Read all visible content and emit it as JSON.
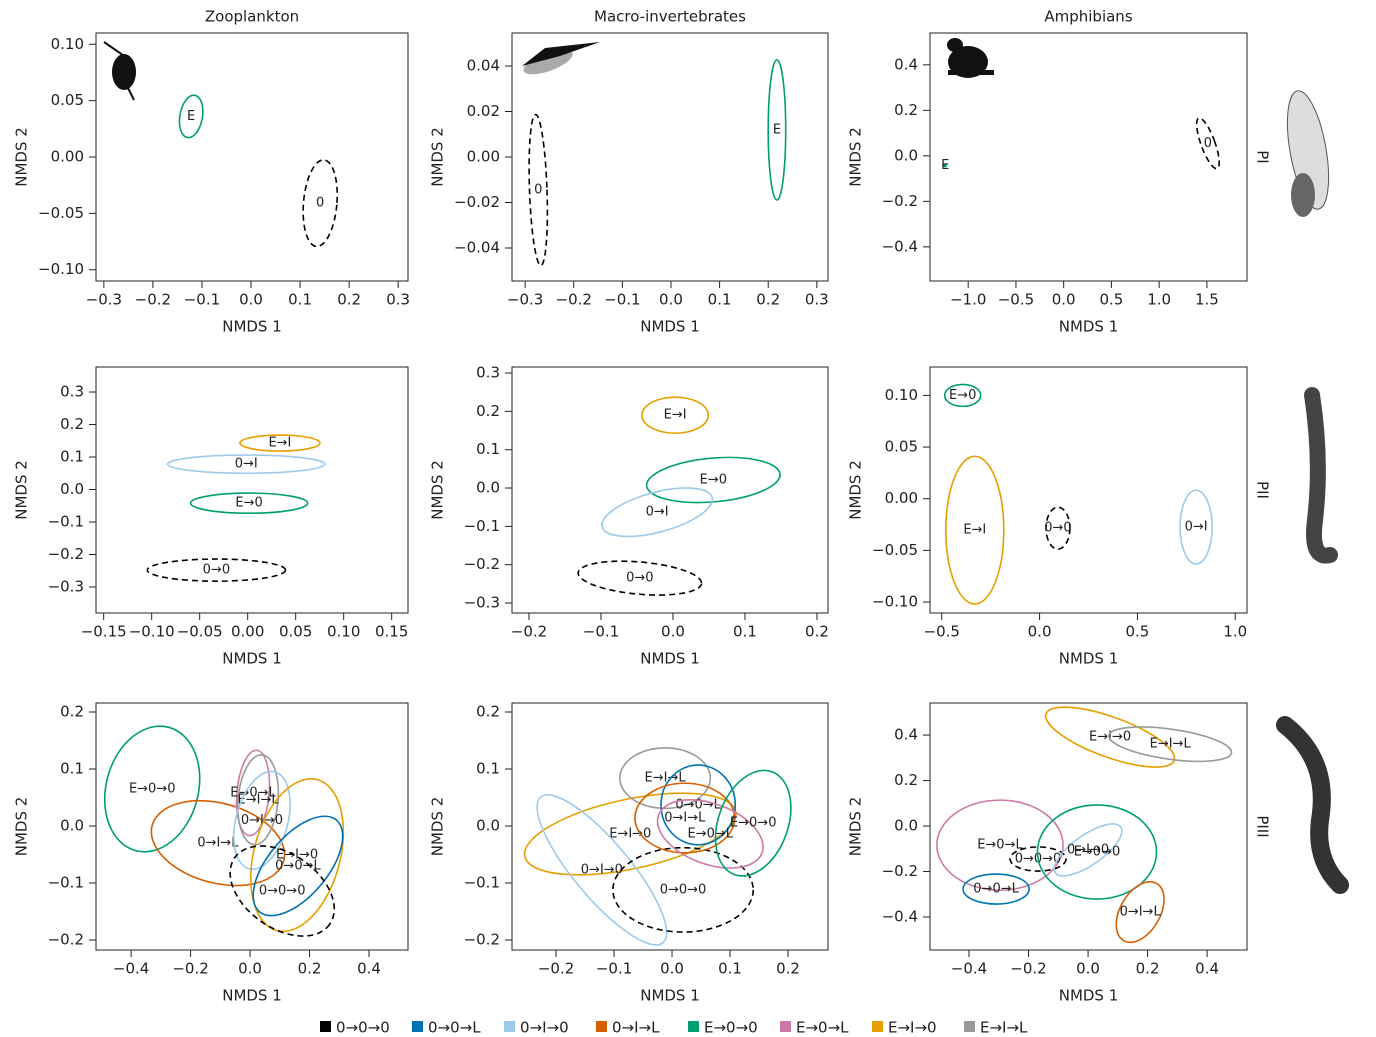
{
  "row_labels": [
    "PI",
    "PII",
    "PIII"
  ],
  "legend": [
    {
      "name": "0→0→0",
      "color": "#000000"
    },
    {
      "name": "0→0→L",
      "color": "#0072b2"
    },
    {
      "name": "0→I→0",
      "color": "#9ccae8"
    },
    {
      "name": "0→I→L",
      "color": "#d55e00"
    },
    {
      "name": "E→0→0",
      "color": "#009e73"
    },
    {
      "name": "E→0→L",
      "color": "#cc79a7"
    },
    {
      "name": "E→I→0",
      "color": "#e69f00"
    },
    {
      "name": "E→I→L",
      "color": "#999999"
    }
  ],
  "chart_data": [
    {
      "type": "ellipse",
      "title": "Zooplankton",
      "xlabel": "NMDS 1",
      "ylabel": "NMDS 2",
      "xlim": [
        -0.316,
        0.32
      ],
      "ylim": [
        -0.11,
        0.11
      ],
      "xticks": [
        {
          "value": -0.3,
          "label": "−0.3"
        },
        {
          "value": -0.2,
          "label": "−0.2"
        },
        {
          "value": -0.1,
          "label": "−0.1"
        },
        {
          "value": 0,
          "label": "0.0"
        },
        0.1,
        0.2,
        0.3
      ],
      "yticks": [
        {
          "value": -0.1,
          "label": "−0.10"
        },
        {
          "value": -0.05,
          "label": "−0.05"
        },
        {
          "value": 0,
          "label": "0.00"
        },
        0.05,
        {
          "value": 0.1,
          "label": "0.10"
        }
      ],
      "series": [
        {
          "name": "E",
          "color": "#009e73",
          "cx": -0.122,
          "cy": 0.036,
          "rx": 0.023,
          "ry": 0.019,
          "angle": 10
        },
        {
          "name": "0",
          "color": "#000000",
          "dashed": true,
          "cx": 0.141,
          "cy": -0.041,
          "rx": 0.034,
          "ry": 0.0385,
          "angle": 5
        }
      ]
    },
    {
      "type": "ellipse",
      "title": "Macro-invertebrates",
      "xlabel": "NMDS 1",
      "ylabel": "NMDS 2",
      "xlim": [
        -0.327,
        0.323
      ],
      "ylim": [
        -0.0545,
        0.0545
      ],
      "xticks": [
        {
          "value": -0.3,
          "label": "−0.3"
        },
        {
          "value": -0.2,
          "label": "−0.2"
        },
        {
          "value": -0.1,
          "label": "−0.1"
        },
        {
          "value": 0,
          "label": "0.0"
        },
        0.1,
        0.2,
        0.3
      ],
      "yticks": [
        {
          "value": -0.04,
          "label": "−0.04"
        },
        {
          "value": -0.02,
          "label": "−0.02"
        },
        {
          "value": 0,
          "label": "0.00"
        },
        0.02,
        0.04
      ],
      "series": [
        {
          "name": "0",
          "color": "#000000",
          "dashed": true,
          "cx": -0.273,
          "cy": -0.0145,
          "rx": 0.018,
          "ry": 0.0332,
          "angle": -2
        },
        {
          "name": "E",
          "color": "#009e73",
          "cx": 0.218,
          "cy": 0.0119,
          "rx": 0.018,
          "ry": 0.0308,
          "angle": 0
        }
      ]
    },
    {
      "type": "ellipse",
      "title": "Amphibians",
      "xlabel": "NMDS 1",
      "ylabel": "NMDS 2",
      "xlim": [
        -1.4,
        1.92
      ],
      "ylim": [
        -0.55,
        0.54
      ],
      "xticks": [
        {
          "value": -1,
          "label": "−1.0"
        },
        {
          "value": -0.5,
          "label": "−0.5"
        },
        {
          "value": 0,
          "label": "0.0"
        },
        0.5,
        {
          "value": 1,
          "label": "1.0"
        },
        1.5
      ],
      "yticks": [
        {
          "value": -0.4,
          "label": "−0.4"
        },
        {
          "value": -0.2,
          "label": "−0.2"
        },
        {
          "value": 0,
          "label": "0.0"
        },
        0.2,
        0.4
      ],
      "series": [
        {
          "name": "E",
          "color": "#009e73",
          "cx": -1.241,
          "cy": -0.042,
          "rx": 0.01,
          "ry": 0.005,
          "angle": 0
        },
        {
          "name": "0",
          "color": "#000000",
          "dashed": true,
          "cx": 1.511,
          "cy": 0.055,
          "rx": 0.073,
          "ry": 0.118,
          "angle": -20
        }
      ]
    },
    {
      "type": "ellipse",
      "xlabel": "NMDS 1",
      "ylabel": "NMDS 2",
      "xlim": [
        -0.158,
        0.167
      ],
      "ylim": [
        -0.38,
        0.377
      ],
      "xticks": [
        {
          "value": -0.15,
          "label": "−0.15"
        },
        {
          "value": -0.1,
          "label": "−0.10"
        },
        {
          "value": -0.05,
          "label": "−0.05"
        },
        {
          "value": 0,
          "label": "0.00"
        },
        0.05,
        {
          "value": 0.1,
          "label": "0.10"
        },
        0.15
      ],
      "yticks": [
        {
          "value": -0.3,
          "label": "−0.3"
        },
        {
          "value": -0.2,
          "label": "−0.2"
        },
        {
          "value": -0.1,
          "label": "−0.1"
        },
        {
          "value": 0,
          "label": "0.0"
        },
        0.1,
        0.2,
        0.3
      ],
      "series": [
        {
          "name": "E→I",
          "color": "#e69f00",
          "cx": 0.0336,
          "cy": 0.143,
          "rx": 0.0417,
          "ry": 0.0246,
          "angle": 0
        },
        {
          "name": "0→I",
          "color": "#9ccae8",
          "cx": -0.0015,
          "cy": 0.078,
          "rx": 0.082,
          "ry": 0.028,
          "angle": 0
        },
        {
          "name": "E→0",
          "color": "#009e73",
          "cx": 0.0015,
          "cy": -0.042,
          "rx": 0.061,
          "ry": 0.031,
          "angle": 0
        },
        {
          "name": "0→0",
          "color": "#000000",
          "dashed": true,
          "cx": -0.0326,
          "cy": -0.248,
          "rx": 0.072,
          "ry": 0.034,
          "angle": 0
        }
      ]
    },
    {
      "type": "ellipse",
      "xlabel": "NMDS 1",
      "ylabel": "NMDS 2",
      "xlim": [
        -0.2236,
        0.2153
      ],
      "ylim": [
        -0.326,
        0.3157
      ],
      "xticks": [
        {
          "value": -0.2,
          "label": "−0.2"
        },
        {
          "value": -0.1,
          "label": "−0.1"
        },
        {
          "value": 0,
          "label": "0.0"
        },
        0.1,
        0.2
      ],
      "yticks": [
        {
          "value": -0.3,
          "label": "−0.3"
        },
        {
          "value": -0.2,
          "label": "−0.2"
        },
        {
          "value": -0.1,
          "label": "−0.1"
        },
        {
          "value": 0,
          "label": "0.0"
        },
        0.1,
        0.2,
        0.3
      ],
      "series": [
        {
          "name": "E→I",
          "color": "#e69f00",
          "cx": 0.003,
          "cy": 0.19,
          "rx": 0.046,
          "ry": 0.047,
          "angle": 0
        },
        {
          "name": "E→0",
          "color": "#009e73",
          "cx": 0.056,
          "cy": 0.021,
          "rx": 0.093,
          "ry": 0.057,
          "angle": -5
        },
        {
          "name": "0→I",
          "color": "#9ccae8",
          "cx": -0.022,
          "cy": -0.063,
          "rx": 0.079,
          "ry": 0.052,
          "angle": -15
        },
        {
          "name": "0→0",
          "color": "#000000",
          "dashed": true,
          "cx": -0.046,
          "cy": -0.235,
          "rx": 0.086,
          "ry": 0.042,
          "angle": 5
        }
      ]
    },
    {
      "type": "ellipse",
      "xlabel": "NMDS 1",
      "ylabel": "NMDS 2",
      "xlim": [
        -0.56,
        1.06
      ],
      "ylim": [
        -0.1106,
        0.1275
      ],
      "xticks": [
        {
          "value": -0.5,
          "label": "−0.5"
        },
        {
          "value": 0,
          "label": "0.0"
        },
        0.5,
        {
          "value": 1,
          "label": "1.0"
        }
      ],
      "yticks": [
        {
          "value": -0.1,
          "label": "−0.10"
        },
        {
          "value": -0.05,
          "label": "−0.05"
        },
        {
          "value": 0,
          "label": "0.00"
        },
        0.05,
        {
          "value": 0.1,
          "label": "0.10"
        }
      ],
      "series": [
        {
          "name": "E→0",
          "color": "#009e73",
          "cx": -0.393,
          "cy": 0.1,
          "rx": 0.092,
          "ry": 0.0106,
          "angle": 0
        },
        {
          "name": "E→I",
          "color": "#e69f00",
          "cx": -0.331,
          "cy": -0.0304,
          "rx": 0.148,
          "ry": 0.0715,
          "angle": 0
        },
        {
          "name": "0→0",
          "color": "#000000",
          "dashed": true,
          "cx": 0.094,
          "cy": -0.0285,
          "rx": 0.061,
          "ry": 0.0203,
          "angle": 0
        },
        {
          "name": "0→I",
          "color": "#9ccae8",
          "cx": 0.8,
          "cy": -0.0275,
          "rx": 0.082,
          "ry": 0.0357,
          "angle": 0
        }
      ]
    },
    {
      "type": "ellipse",
      "xlabel": "NMDS 1",
      "ylabel": "NMDS 2",
      "xlim": [
        -0.518,
        0.531
      ],
      "ylim": [
        -0.2175,
        0.2158
      ],
      "xticks": [
        {
          "value": -0.4,
          "label": "−0.4"
        },
        {
          "value": -0.2,
          "label": "−0.2"
        },
        {
          "value": 0,
          "label": "0.0"
        },
        0.2,
        0.4
      ],
      "yticks": [
        {
          "value": -0.2,
          "label": "−0.2"
        },
        {
          "value": -0.1,
          "label": "−0.1"
        },
        {
          "value": 0,
          "label": "0.0"
        },
        0.1,
        0.2
      ],
      "series": [
        {
          "name": "E→0→0",
          "color": "#009e73",
          "cx": -0.329,
          "cy": 0.065,
          "rx": 0.155,
          "ry": 0.112,
          "angle": 15
        },
        {
          "name": "0→I→L",
          "color": "#d55e00",
          "cx": -0.108,
          "cy": -0.03,
          "rx": 0.229,
          "ry": 0.07,
          "angle": 15
        },
        {
          "name": "E→0→L",
          "color": "#cc79a7",
          "cx": 0.01,
          "cy": 0.058,
          "rx": 0.054,
          "ry": 0.075,
          "angle": 5
        },
        {
          "name": "E→I→L",
          "color": "#999999",
          "cx": 0.027,
          "cy": 0.046,
          "rx": 0.067,
          "ry": 0.079,
          "angle": 5
        },
        {
          "name": "0→I→0",
          "color": "#9ccae8",
          "cx": 0.04,
          "cy": 0.01,
          "rx": 0.087,
          "ry": 0.088,
          "angle": 15
        },
        {
          "name": "E→I→0",
          "color": "#e69f00",
          "cx": 0.158,
          "cy": -0.051,
          "rx": 0.145,
          "ry": 0.137,
          "angle": 15
        },
        {
          "name": "0→0→L",
          "color": "#0072b2",
          "cx": 0.161,
          "cy": -0.07,
          "rx": 0.1,
          "ry": 0.105,
          "angle": 40
        },
        {
          "name": "0→0→0",
          "color": "#000000",
          "dashed": true,
          "cx": 0.108,
          "cy": -0.114,
          "rx": 0.195,
          "ry": 0.065,
          "angle": 35
        }
      ]
    },
    {
      "type": "ellipse",
      "xlabel": "NMDS 1",
      "ylabel": "NMDS 2",
      "xlim": [
        -0.276,
        0.269
      ],
      "ylim": [
        -0.2175,
        0.2158
      ],
      "xticks": [
        {
          "value": -0.2,
          "label": "−0.2"
        },
        {
          "value": -0.1,
          "label": "−0.1"
        },
        {
          "value": 0,
          "label": "0.0"
        },
        0.1,
        0.2
      ],
      "yticks": [
        {
          "value": -0.2,
          "label": "−0.2"
        },
        {
          "value": -0.1,
          "label": "−0.1"
        },
        {
          "value": 0,
          "label": "0.0"
        },
        0.1,
        0.2
      ],
      "series": [
        {
          "name": "E→I→0",
          "color": "#e69f00",
          "cx": -0.072,
          "cy": -0.014,
          "rx": 0.186,
          "ry": 0.061,
          "angle": -12
        },
        {
          "name": "0→I→0",
          "color": "#9ccae8",
          "cx": -0.121,
          "cy": -0.077,
          "rx": 0.164,
          "ry": 0.049,
          "angle": 50
        },
        {
          "name": "0→0→0",
          "color": "#000000",
          "dashed": true,
          "cx": 0.019,
          "cy": -0.112,
          "rx": 0.121,
          "ry": 0.074,
          "angle": 0
        },
        {
          "name": "E→I→L",
          "color": "#999999",
          "cx": -0.012,
          "cy": 0.084,
          "rx": 0.078,
          "ry": 0.053,
          "angle": 0
        },
        {
          "name": "0→0→L",
          "color": "#0072b2",
          "cx": 0.045,
          "cy": 0.037,
          "rx": 0.064,
          "ry": 0.07,
          "angle": 0
        },
        {
          "name": "0→I→L",
          "color": "#d55e00",
          "cx": 0.022,
          "cy": 0.014,
          "rx": 0.086,
          "ry": 0.061,
          "angle": 0
        },
        {
          "name": "E→0→L",
          "color": "#cc79a7",
          "cx": 0.066,
          "cy": -0.014,
          "rx": 0.095,
          "ry": 0.053,
          "angle": 20
        },
        {
          "name": "E→0→0",
          "color": "#009e73",
          "cx": 0.14,
          "cy": 0.005,
          "rx": 0.06,
          "ry": 0.096,
          "angle": 20
        }
      ]
    },
    {
      "type": "ellipse",
      "xlabel": "NMDS 1",
      "ylabel": "NMDS 2",
      "xlim": [
        -0.531,
        0.534
      ],
      "ylim": [
        -0.545,
        0.541
      ],
      "xticks": [
        {
          "value": -0.4,
          "label": "−0.4"
        },
        {
          "value": -0.2,
          "label": "−0.2"
        },
        {
          "value": 0,
          "label": "0.0"
        },
        0.2,
        0.4
      ],
      "yticks": [
        {
          "value": -0.4,
          "label": "−0.4"
        },
        {
          "value": -0.2,
          "label": "−0.2"
        },
        {
          "value": 0,
          "label": "0.0"
        },
        0.2,
        0.4
      ],
      "series": [
        {
          "name": "E→I→0",
          "color": "#e69f00",
          "cx": 0.074,
          "cy": 0.391,
          "rx": 0.229,
          "ry": 0.088,
          "angle": 20
        },
        {
          "name": "E→I→L",
          "color": "#999999",
          "cx": 0.276,
          "cy": 0.36,
          "rx": 0.208,
          "ry": 0.066,
          "angle": 8
        },
        {
          "name": "E→0→L",
          "color": "#cc79a7",
          "cx": -0.296,
          "cy": -0.084,
          "rx": 0.212,
          "ry": 0.198,
          "angle": 0
        },
        {
          "name": "0→0→0",
          "color": "#000000",
          "dashed": true,
          "cx": -0.168,
          "cy": -0.145,
          "rx": 0.094,
          "ry": 0.053,
          "angle": 0
        },
        {
          "name": "0→0→L",
          "color": "#0072b2",
          "cx": -0.309,
          "cy": -0.277,
          "rx": 0.111,
          "ry": 0.066,
          "angle": 0
        },
        {
          "name": "0→I→0",
          "color": "#9ccae8",
          "cx": 0.0,
          "cy": -0.105,
          "rx": 0.134,
          "ry": 0.066,
          "angle": -35
        },
        {
          "name": "E→0→0",
          "color": "#009e73",
          "cx": 0.03,
          "cy": -0.114,
          "rx": 0.2,
          "ry": 0.207,
          "angle": 0
        },
        {
          "name": "0→I→L",
          "color": "#d55e00",
          "cx": 0.175,
          "cy": -0.378,
          "rx": 0.067,
          "ry": 0.145,
          "angle": 30
        }
      ]
    }
  ]
}
